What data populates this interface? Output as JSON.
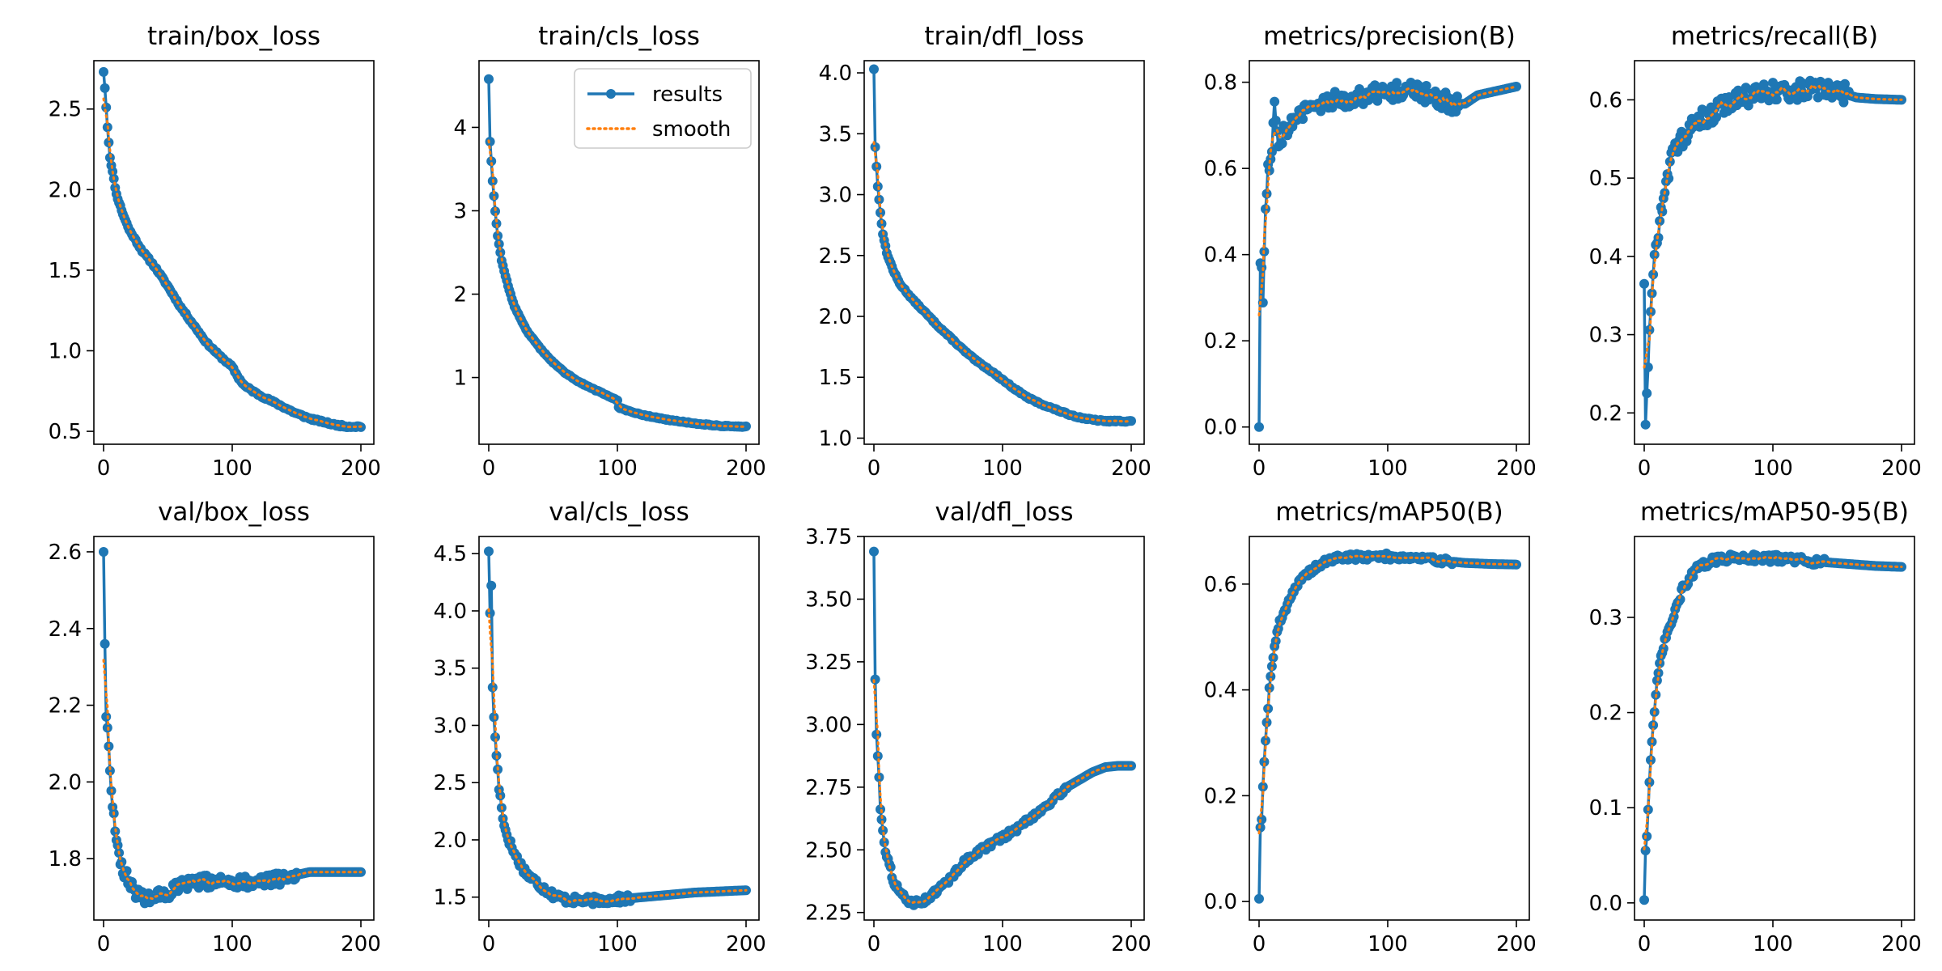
{
  "figure": {
    "colors": {
      "results": "#1f77b4",
      "smooth": "#ff7f0e"
    },
    "legend": {
      "placement": "top-right",
      "panel": "train/cls_loss",
      "entries": [
        "results",
        "smooth"
      ]
    }
  },
  "chart_data": [
    {
      "type": "line",
      "title": "train/box_loss",
      "xlim": [
        0,
        200
      ],
      "ylim": [
        0.42,
        2.8
      ],
      "xticks": [
        0,
        100,
        200
      ],
      "yticks": [
        0.5,
        1.0,
        1.5,
        2.0,
        2.5
      ],
      "xtick_labels": [
        "0",
        "100",
        "200"
      ],
      "ytick_labels": [
        "0.5",
        "1.0",
        "1.5",
        "2.0",
        "2.5"
      ],
      "epochs": 200,
      "points": [
        [
          0,
          2.73
        ],
        [
          1,
          2.63
        ],
        [
          3,
          2.39
        ],
        [
          5,
          2.2
        ],
        [
          7,
          2.11
        ],
        [
          10,
          1.97
        ],
        [
          15,
          1.85
        ],
        [
          20,
          1.75
        ],
        [
          30,
          1.62
        ],
        [
          40,
          1.52
        ],
        [
          50,
          1.4
        ],
        [
          60,
          1.27
        ],
        [
          70,
          1.16
        ],
        [
          80,
          1.05
        ],
        [
          90,
          0.97
        ],
        [
          100,
          0.9
        ],
        [
          105,
          0.83
        ],
        [
          110,
          0.78
        ],
        [
          120,
          0.73
        ],
        [
          130,
          0.69
        ],
        [
          140,
          0.65
        ],
        [
          150,
          0.61
        ],
        [
          160,
          0.58
        ],
        [
          170,
          0.56
        ],
        [
          180,
          0.54
        ],
        [
          190,
          0.53
        ],
        [
          200,
          0.53
        ]
      ],
      "noise": 0.006,
      "seed": 11
    },
    {
      "type": "line",
      "title": "train/cls_loss",
      "xlim": [
        0,
        200
      ],
      "ylim": [
        0.2,
        4.8
      ],
      "xticks": [
        0,
        100,
        200
      ],
      "yticks": [
        1,
        2,
        3,
        4
      ],
      "xtick_labels": [
        "0",
        "100",
        "200"
      ],
      "ytick_labels": [
        "1",
        "2",
        "3",
        "4"
      ],
      "epochs": 200,
      "points": [
        [
          0,
          4.58
        ],
        [
          1,
          3.83
        ],
        [
          3,
          3.36
        ],
        [
          5,
          3.0
        ],
        [
          7,
          2.7
        ],
        [
          10,
          2.4
        ],
        [
          15,
          2.1
        ],
        [
          20,
          1.85
        ],
        [
          30,
          1.55
        ],
        [
          40,
          1.35
        ],
        [
          50,
          1.18
        ],
        [
          60,
          1.05
        ],
        [
          70,
          0.95
        ],
        [
          80,
          0.87
        ],
        [
          90,
          0.8
        ],
        [
          100,
          0.73
        ],
        [
          101,
          0.64
        ],
        [
          110,
          0.59
        ],
        [
          120,
          0.55
        ],
        [
          140,
          0.49
        ],
        [
          160,
          0.45
        ],
        [
          180,
          0.42
        ],
        [
          200,
          0.41
        ]
      ],
      "noise": 0.006,
      "seed": 12
    },
    {
      "type": "line",
      "title": "train/dfl_loss",
      "xlim": [
        0,
        200
      ],
      "ylim": [
        0.95,
        4.1
      ],
      "xticks": [
        0,
        100,
        200
      ],
      "yticks": [
        1.0,
        1.5,
        2.0,
        2.5,
        3.0,
        3.5,
        4.0
      ],
      "xtick_labels": [
        "0",
        "100",
        "200"
      ],
      "ytick_labels": [
        "1.0",
        "1.5",
        "2.0",
        "2.5",
        "3.0",
        "3.5",
        "4.0"
      ],
      "epochs": 200,
      "points": [
        [
          0,
          4.03
        ],
        [
          1,
          3.39
        ],
        [
          3,
          3.07
        ],
        [
          5,
          2.85
        ],
        [
          7,
          2.68
        ],
        [
          10,
          2.52
        ],
        [
          15,
          2.38
        ],
        [
          20,
          2.27
        ],
        [
          30,
          2.14
        ],
        [
          40,
          2.03
        ],
        [
          50,
          1.92
        ],
        [
          60,
          1.82
        ],
        [
          70,
          1.72
        ],
        [
          80,
          1.63
        ],
        [
          90,
          1.56
        ],
        [
          100,
          1.48
        ],
        [
          110,
          1.4
        ],
        [
          120,
          1.33
        ],
        [
          130,
          1.28
        ],
        [
          140,
          1.24
        ],
        [
          150,
          1.2
        ],
        [
          160,
          1.17
        ],
        [
          170,
          1.15
        ],
        [
          180,
          1.14
        ],
        [
          200,
          1.14
        ]
      ],
      "noise": 0.006,
      "seed": 13
    },
    {
      "type": "line",
      "title": "metrics/precision(B)",
      "xlim": [
        0,
        200
      ],
      "ylim": [
        -0.04,
        0.85
      ],
      "xticks": [
        0,
        100,
        200
      ],
      "yticks": [
        0.0,
        0.2,
        0.4,
        0.6,
        0.8
      ],
      "xtick_labels": [
        "0",
        "100",
        "200"
      ],
      "ytick_labels": [
        "0.0",
        "0.2",
        "0.4",
        "0.6",
        "0.8"
      ],
      "epochs": 200,
      "points": [
        [
          0,
          0.0
        ],
        [
          1,
          0.38
        ],
        [
          2,
          0.37
        ],
        [
          3,
          0.3
        ],
        [
          5,
          0.51
        ],
        [
          7,
          0.6
        ],
        [
          10,
          0.64
        ],
        [
          12,
          0.76
        ],
        [
          15,
          0.66
        ],
        [
          20,
          0.69
        ],
        [
          30,
          0.72
        ],
        [
          40,
          0.74
        ],
        [
          50,
          0.75
        ],
        [
          60,
          0.76
        ],
        [
          80,
          0.77
        ],
        [
          100,
          0.78
        ],
        [
          120,
          0.78
        ],
        [
          140,
          0.76
        ],
        [
          150,
          0.75
        ],
        [
          160,
          0.75
        ],
        [
          170,
          0.77
        ],
        [
          185,
          0.78
        ],
        [
          200,
          0.79
        ]
      ],
      "noise": 0.022,
      "noise_until": 155,
      "seed": 14
    },
    {
      "type": "line",
      "title": "metrics/recall(B)",
      "xlim": [
        0,
        200
      ],
      "ylim": [
        0.16,
        0.65
      ],
      "xticks": [
        0,
        100,
        200
      ],
      "yticks": [
        0.2,
        0.3,
        0.4,
        0.5,
        0.6
      ],
      "xtick_labels": [
        "0",
        "100",
        "200"
      ],
      "ytick_labels": [
        "0.2",
        "0.3",
        "0.4",
        "0.5",
        "0.6"
      ],
      "epochs": 200,
      "points": [
        [
          0,
          0.365
        ],
        [
          1,
          0.185
        ],
        [
          3,
          0.265
        ],
        [
          5,
          0.34
        ],
        [
          7,
          0.38
        ],
        [
          10,
          0.42
        ],
        [
          13,
          0.46
        ],
        [
          16,
          0.49
        ],
        [
          20,
          0.52
        ],
        [
          30,
          0.55
        ],
        [
          40,
          0.57
        ],
        [
          50,
          0.58
        ],
        [
          60,
          0.59
        ],
        [
          70,
          0.6
        ],
        [
          80,
          0.605
        ],
        [
          100,
          0.61
        ],
        [
          120,
          0.612
        ],
        [
          140,
          0.612
        ],
        [
          155,
          0.608
        ],
        [
          165,
          0.603
        ],
        [
          180,
          0.601
        ],
        [
          200,
          0.6
        ]
      ],
      "noise": 0.013,
      "noise_until": 160,
      "seed": 15
    },
    {
      "type": "line",
      "title": "val/box_loss",
      "xlim": [
        0,
        200
      ],
      "ylim": [
        1.64,
        2.64
      ],
      "xticks": [
        0,
        100,
        200
      ],
      "yticks": [
        1.8,
        2.0,
        2.2,
        2.4,
        2.6
      ],
      "xtick_labels": [
        "0",
        "100",
        "200"
      ],
      "ytick_labels": [
        "1.8",
        "2.0",
        "2.2",
        "2.4",
        "2.6"
      ],
      "epochs": 200,
      "points": [
        [
          0,
          2.6
        ],
        [
          1,
          2.36
        ],
        [
          2,
          2.17
        ],
        [
          3,
          2.15
        ],
        [
          5,
          2.02
        ],
        [
          7,
          1.95
        ],
        [
          9,
          1.88
        ],
        [
          11,
          1.83
        ],
        [
          15,
          1.77
        ],
        [
          20,
          1.74
        ],
        [
          25,
          1.71
        ],
        [
          30,
          1.7
        ],
        [
          40,
          1.7
        ],
        [
          50,
          1.71
        ],
        [
          60,
          1.73
        ],
        [
          80,
          1.74
        ],
        [
          100,
          1.74
        ],
        [
          120,
          1.74
        ],
        [
          140,
          1.75
        ],
        [
          160,
          1.765
        ],
        [
          180,
          1.765
        ],
        [
          200,
          1.765
        ]
      ],
      "noise": 0.017,
      "noise_until": 150,
      "seed": 16
    },
    {
      "type": "line",
      "title": "val/cls_loss",
      "xlim": [
        0,
        200
      ],
      "ylim": [
        1.3,
        4.65
      ],
      "xticks": [
        0,
        100,
        200
      ],
      "yticks": [
        1.5,
        2.0,
        2.5,
        3.0,
        3.5,
        4.0,
        4.5
      ],
      "xtick_labels": [
        "0",
        "100",
        "200"
      ],
      "ytick_labels": [
        "1.5",
        "2.0",
        "2.5",
        "3.0",
        "3.5",
        "4.0",
        "4.5"
      ],
      "epochs": 200,
      "points": [
        [
          0,
          4.52
        ],
        [
          1,
          3.98
        ],
        [
          2,
          4.22
        ],
        [
          3,
          3.35
        ],
        [
          4,
          3.05
        ],
        [
          6,
          2.75
        ],
        [
          8,
          2.45
        ],
        [
          10,
          2.3
        ],
        [
          12,
          2.12
        ],
        [
          15,
          2.02
        ],
        [
          20,
          1.88
        ],
        [
          25,
          1.78
        ],
        [
          30,
          1.7
        ],
        [
          40,
          1.6
        ],
        [
          50,
          1.52
        ],
        [
          60,
          1.48
        ],
        [
          70,
          1.47
        ],
        [
          80,
          1.47
        ],
        [
          100,
          1.48
        ],
        [
          120,
          1.5
        ],
        [
          140,
          1.52
        ],
        [
          160,
          1.54
        ],
        [
          180,
          1.55
        ],
        [
          200,
          1.56
        ]
      ],
      "noise": 0.035,
      "noise_until": 110,
      "seed": 17
    },
    {
      "type": "line",
      "title": "val/dfl_loss",
      "xlim": [
        0,
        200
      ],
      "ylim": [
        2.22,
        3.75
      ],
      "xticks": [
        0,
        100,
        200
      ],
      "yticks": [
        2.25,
        2.5,
        2.75,
        3.0,
        3.25,
        3.5,
        3.75
      ],
      "xtick_labels": [
        "0",
        "100",
        "200"
      ],
      "ytick_labels": [
        "2.25",
        "2.50",
        "2.75",
        "3.00",
        "3.25",
        "3.50",
        "3.75"
      ],
      "epochs": 200,
      "points": [
        [
          0,
          3.69
        ],
        [
          1,
          3.18
        ],
        [
          2,
          2.96
        ],
        [
          3,
          2.88
        ],
        [
          4,
          2.78
        ],
        [
          5,
          2.67
        ],
        [
          7,
          2.58
        ],
        [
          9,
          2.5
        ],
        [
          12,
          2.44
        ],
        [
          15,
          2.38
        ],
        [
          20,
          2.33
        ],
        [
          25,
          2.3
        ],
        [
          30,
          2.29
        ],
        [
          35,
          2.29
        ],
        [
          40,
          2.3
        ],
        [
          50,
          2.34
        ],
        [
          60,
          2.39
        ],
        [
          70,
          2.45
        ],
        [
          80,
          2.49
        ],
        [
          90,
          2.52
        ],
        [
          100,
          2.55
        ],
        [
          110,
          2.58
        ],
        [
          120,
          2.62
        ],
        [
          130,
          2.66
        ],
        [
          140,
          2.7
        ],
        [
          150,
          2.75
        ],
        [
          160,
          2.78
        ],
        [
          170,
          2.81
        ],
        [
          180,
          2.83
        ],
        [
          190,
          2.835
        ],
        [
          200,
          2.835
        ]
      ],
      "noise": 0.012,
      "noise_until": 150,
      "seed": 18
    },
    {
      "type": "line",
      "title": "metrics/mAP50(B)",
      "xlim": [
        0,
        200
      ],
      "ylim": [
        -0.035,
        0.69
      ],
      "xticks": [
        0,
        100,
        200
      ],
      "yticks": [
        0.0,
        0.2,
        0.4,
        0.6
      ],
      "xtick_labels": [
        "0",
        "100",
        "200"
      ],
      "ytick_labels": [
        "0.0",
        "0.2",
        "0.4",
        "0.6"
      ],
      "epochs": 200,
      "points": [
        [
          0,
          0.005
        ],
        [
          1,
          0.14
        ],
        [
          2,
          0.155
        ],
        [
          3,
          0.22
        ],
        [
          4,
          0.27
        ],
        [
          5,
          0.3
        ],
        [
          6,
          0.34
        ],
        [
          8,
          0.4
        ],
        [
          10,
          0.45
        ],
        [
          12,
          0.48
        ],
        [
          15,
          0.52
        ],
        [
          20,
          0.55
        ],
        [
          25,
          0.58
        ],
        [
          30,
          0.6
        ],
        [
          40,
          0.625
        ],
        [
          50,
          0.64
        ],
        [
          60,
          0.65
        ],
        [
          80,
          0.652
        ],
        [
          100,
          0.652
        ],
        [
          120,
          0.65
        ],
        [
          140,
          0.645
        ],
        [
          160,
          0.64
        ],
        [
          180,
          0.638
        ],
        [
          200,
          0.637
        ]
      ],
      "noise": 0.006,
      "noise_until": 150,
      "seed": 19
    },
    {
      "type": "line",
      "title": "metrics/mAP50-95(B)",
      "xlim": [
        0,
        200
      ],
      "ylim": [
        -0.018,
        0.385
      ],
      "xticks": [
        0,
        100,
        200
      ],
      "yticks": [
        0.0,
        0.1,
        0.2,
        0.3
      ],
      "xtick_labels": [
        "0",
        "100",
        "200"
      ],
      "ytick_labels": [
        "0.0",
        "0.1",
        "0.2",
        "0.3"
      ],
      "epochs": 200,
      "points": [
        [
          0,
          0.003
        ],
        [
          1,
          0.055
        ],
        [
          2,
          0.07
        ],
        [
          3,
          0.1
        ],
        [
          4,
          0.13
        ],
        [
          5,
          0.15
        ],
        [
          6,
          0.17
        ],
        [
          8,
          0.2
        ],
        [
          10,
          0.23
        ],
        [
          12,
          0.25
        ],
        [
          15,
          0.27
        ],
        [
          20,
          0.29
        ],
        [
          25,
          0.31
        ],
        [
          30,
          0.33
        ],
        [
          40,
          0.35
        ],
        [
          50,
          0.358
        ],
        [
          60,
          0.362
        ],
        [
          80,
          0.363
        ],
        [
          100,
          0.362
        ],
        [
          120,
          0.36
        ],
        [
          140,
          0.358
        ],
        [
          160,
          0.356
        ],
        [
          180,
          0.354
        ],
        [
          200,
          0.353
        ]
      ],
      "noise": 0.004,
      "noise_until": 140,
      "seed": 20
    }
  ]
}
